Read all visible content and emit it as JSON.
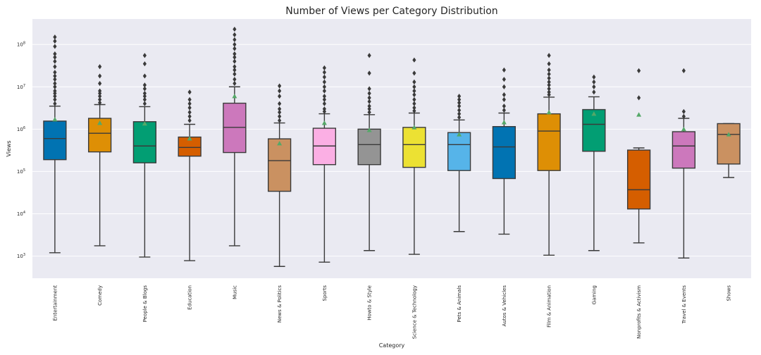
{
  "chart_data": {
    "type": "box",
    "title": "Number of Views per Category Distribution",
    "xlabel": "Category",
    "ylabel": "Views",
    "yscale": "log",
    "ylim": [
      300,
      400000000
    ],
    "yticks": [
      {
        "value": 1000,
        "base": "10",
        "exp": "3"
      },
      {
        "value": 10000,
        "base": "10",
        "exp": "4"
      },
      {
        "value": 100000,
        "base": "10",
        "exp": "5"
      },
      {
        "value": 1000000,
        "base": "10",
        "exp": "6"
      },
      {
        "value": 10000000,
        "base": "10",
        "exp": "7"
      },
      {
        "value": 100000000,
        "base": "10",
        "exp": "8"
      }
    ],
    "grid": true,
    "background_color": "#EAEAF2",
    "mean_marker_color": "#55A868",
    "categories": [
      {
        "name": "Entertainment",
        "color": "#0173B2",
        "whislo": 1200,
        "q1": 190000,
        "median": 600000,
        "q3": 1550000,
        "whishi": 3500000,
        "mean": 1700000,
        "fliers": [
          4000000,
          5000000,
          6000000,
          7000000,
          8000000,
          10000000,
          12000000,
          15000000,
          18000000,
          22000000,
          30000000,
          40000000,
          50000000,
          60000000,
          90000000,
          120000000,
          150000000
        ]
      },
      {
        "name": "Comedy",
        "color": "#DE8F05",
        "whislo": 1750,
        "q1": 290000,
        "median": 800000,
        "q3": 1800000,
        "whishi": 3800000,
        "mean": 1400000,
        "fliers": [
          4200000,
          5000000,
          6000000,
          7000000,
          8000000,
          12000000,
          18000000,
          30000000
        ]
      },
      {
        "name": "People & Blogs",
        "color": "#029E73",
        "whislo": 950,
        "q1": 160000,
        "median": 400000,
        "q3": 1500000,
        "whishi": 3400000,
        "mean": 1350000,
        "fliers": [
          4000000,
          5000000,
          6000000,
          7000000,
          9000000,
          11000000,
          18000000,
          35000000,
          55000000
        ]
      },
      {
        "name": "Education",
        "color": "#D55E00",
        "whislo": 780,
        "q1": 230000,
        "median": 370000,
        "q3": 650000,
        "whishi": 1300000,
        "mean": 600000,
        "fliers": [
          1600000,
          2000000,
          2500000,
          3200000,
          4000000,
          5000000,
          7500000
        ]
      },
      {
        "name": "Music",
        "color": "#CC78BC",
        "whislo": 1750,
        "q1": 280000,
        "median": 1100000,
        "q3": 4100000,
        "whishi": 10000000,
        "mean": 6000000,
        "fliers": [
          12000000,
          15000000,
          20000000,
          25000000,
          30000000,
          40000000,
          50000000,
          60000000,
          80000000,
          100000000,
          130000000,
          170000000,
          230000000
        ]
      },
      {
        "name": "News & Politics",
        "color": "#CA9161",
        "whislo": 570,
        "q1": 34000,
        "median": 180000,
        "q3": 590000,
        "whishi": 1400000,
        "mean": 460000,
        "fliers": [
          1600000,
          2000000,
          2500000,
          3000000,
          4000000,
          6000000,
          8000000,
          10500000
        ]
      },
      {
        "name": "Sports",
        "color": "#FBAFE4",
        "whislo": 720,
        "q1": 145000,
        "median": 400000,
        "q3": 1050000,
        "whishi": 2300000,
        "mean": 1400000,
        "fliers": [
          2600000,
          3000000,
          4000000,
          5000000,
          6000000,
          8000000,
          10000000,
          13000000,
          17000000,
          22000000,
          28000000
        ]
      },
      {
        "name": "Howto & Style",
        "color": "#949494",
        "whislo": 1350,
        "q1": 145000,
        "median": 430000,
        "q3": 1000000,
        "whishi": 2200000,
        "mean": 950000,
        "fliers": [
          2500000,
          3000000,
          3500000,
          4500000,
          5500000,
          7000000,
          9000000,
          21000000,
          55000000
        ]
      },
      {
        "name": "Science & Technology",
        "color": "#ECE133",
        "whislo": 1100,
        "q1": 125000,
        "median": 430000,
        "q3": 1100000,
        "whishi": 2400000,
        "mean": 1100000,
        "fliers": [
          2700000,
          3200000,
          4000000,
          5000000,
          6500000,
          8000000,
          10000000,
          13000000,
          21000000,
          43000000
        ]
      },
      {
        "name": "Pets & Animals",
        "color": "#56B4E9",
        "whislo": 3800,
        "q1": 105000,
        "median": 430000,
        "q3": 830000,
        "whishi": 1650000,
        "mean": 750000,
        "fliers": [
          1900000,
          2300000,
          2800000,
          3500000,
          4200000,
          5000000,
          6000000
        ]
      },
      {
        "name": "Autos & Vehicles",
        "color": "#0173B2",
        "whislo": 3300,
        "q1": 68000,
        "median": 380000,
        "q3": 1150000,
        "whishi": 2400000,
        "mean": 1450000,
        "fliers": [
          2800000,
          3500000,
          5000000,
          6500000,
          10000000,
          15000000,
          25000000
        ]
      },
      {
        "name": "Film & Animation",
        "color": "#DE8F05",
        "whislo": 1050,
        "q1": 105000,
        "median": 900000,
        "q3": 2300000,
        "whishi": 5700000,
        "mean": 2500000,
        "fliers": [
          6500000,
          7500000,
          9000000,
          11000000,
          13000000,
          16000000,
          20000000,
          25000000,
          35000000,
          55000000
        ]
      },
      {
        "name": "Gaming",
        "color": "#029E73",
        "whislo": 1350,
        "q1": 300000,
        "median": 1300000,
        "q3": 2900000,
        "whishi": 5800000,
        "mean": 2300000,
        "fliers": [
          7500000,
          10000000,
          13000000,
          17000000
        ]
      },
      {
        "name": "Nonprofits & Activism",
        "color": "#D55E00",
        "whislo": 2050,
        "q1": 13000,
        "median": 37000,
        "q3": 320000,
        "whishi": 360000,
        "mean": 2200000,
        "fliers": [
          5500000,
          24000000
        ]
      },
      {
        "name": "Travel & Events",
        "color": "#CC78BC",
        "whislo": 900,
        "q1": 120000,
        "median": 400000,
        "q3": 870000,
        "whishi": 1800000,
        "mean": 1000000,
        "fliers": [
          2000000,
          2600000,
          24000000
        ]
      },
      {
        "name": "Shows",
        "color": "#CA9161",
        "whislo": 72000,
        "q1": 150000,
        "median": 750000,
        "q3": 1350000,
        "whishi": 1350000,
        "mean": 750000,
        "fliers": []
      }
    ]
  }
}
